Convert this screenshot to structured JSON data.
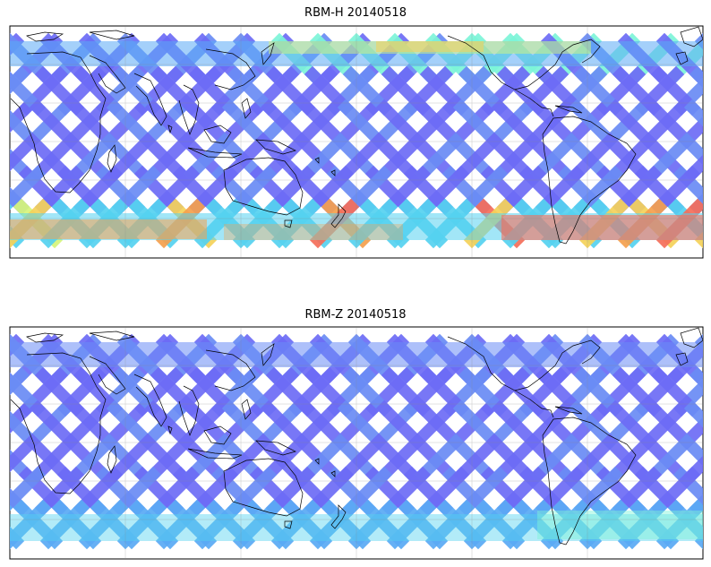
{
  "panels": [
    {
      "title": "RBM-H 20140518",
      "palette": [
        "#6d6cf6",
        "#6a8cf5",
        "#5aaaf5",
        "#55d2f0",
        "#7df5d8",
        "#d6f57a",
        "#f5d25a",
        "#f5a04e",
        "#f56e5a"
      ],
      "swath_color_profile": "blue-dominant with warm orange/red bands at far southern latitudes and yellow near the top"
    },
    {
      "title": "RBM-Z 20140518",
      "palette": [
        "#6d6cf6",
        "#6a8cf5",
        "#5aaaf5",
        "#55d2f0",
        "#7df5d8"
      ],
      "swath_color_profile": "almost entirely blue/purple with cyan near the southern edge"
    }
  ]
}
